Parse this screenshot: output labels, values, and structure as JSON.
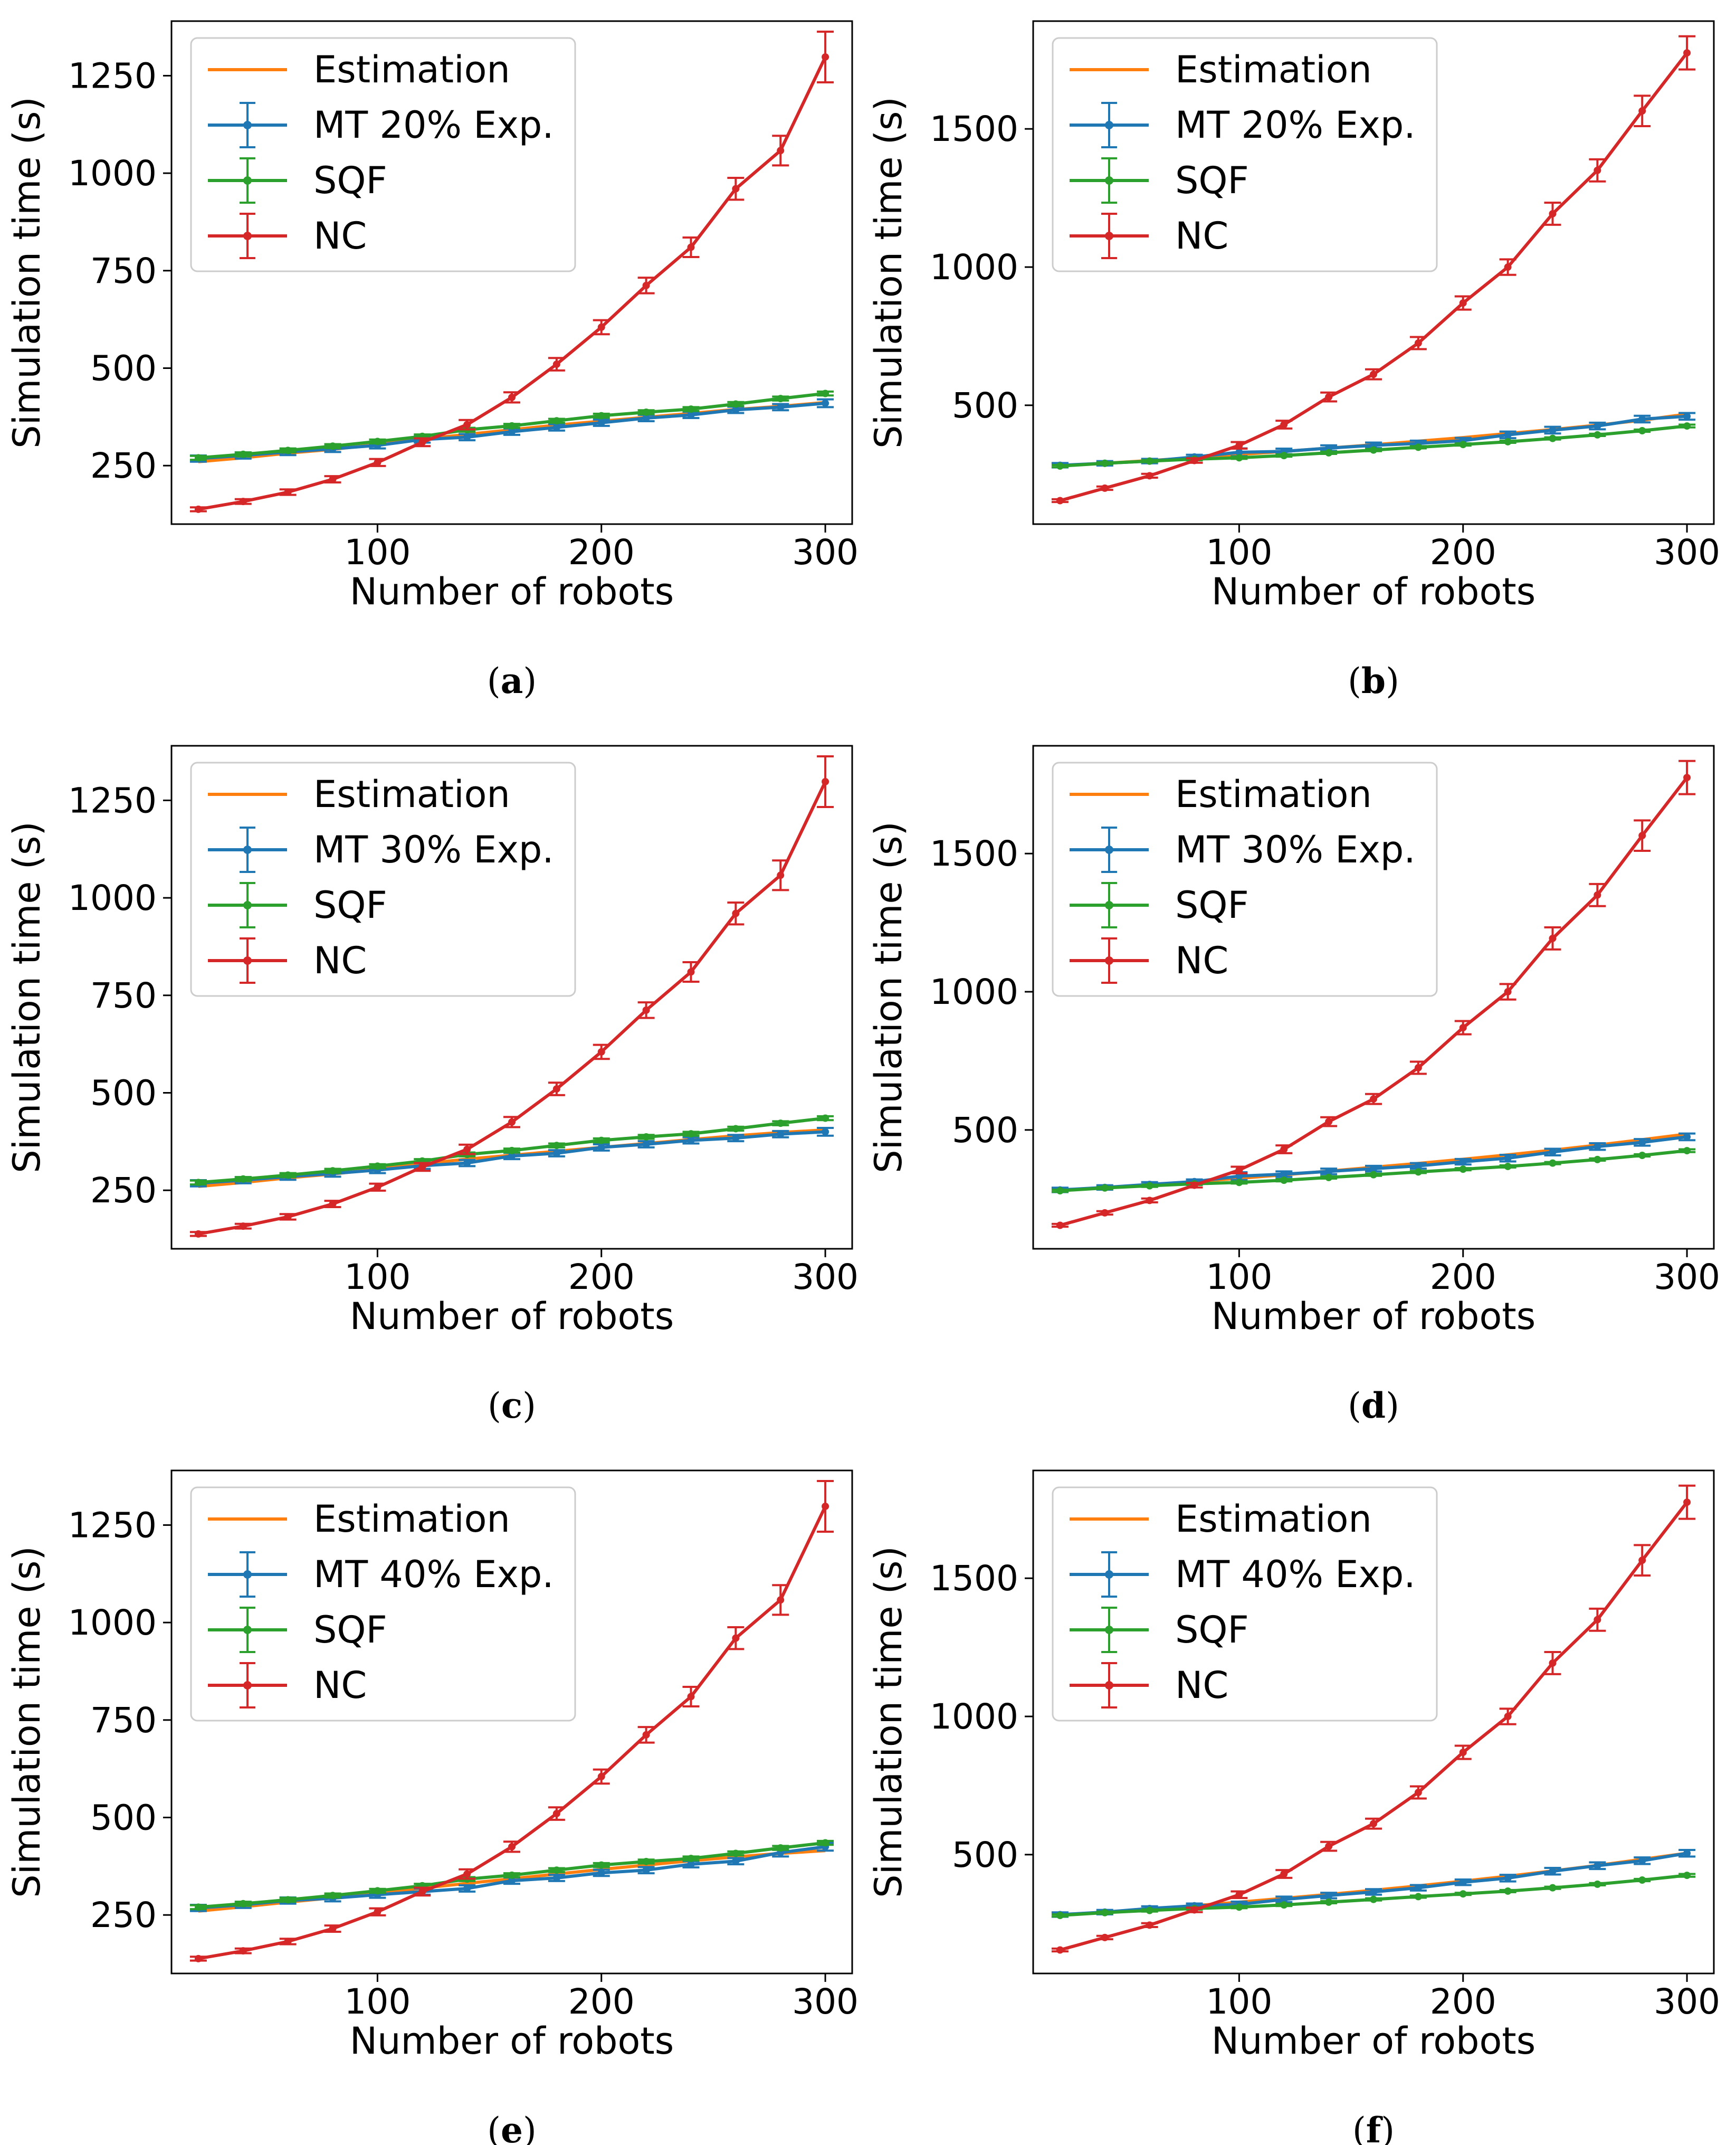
{
  "colors": {
    "estimation": "#ff7f0e",
    "mt": "#1f77b4",
    "sqf": "#2ca02c",
    "nc": "#d62728",
    "axis": "#000000",
    "legend_border": "#cccccc"
  },
  "chart_data": [
    {
      "type": "line",
      "label": "a",
      "xlabel": "Number of robots",
      "ylabel": "Simulation time (s)",
      "xlim": [
        8,
        312
      ],
      "ylim": [
        100,
        1390
      ],
      "xticks": [
        100,
        200,
        300
      ],
      "yticks": [
        250,
        500,
        750,
        1000,
        1250
      ],
      "legend_location": "upper-left",
      "x": [
        20,
        40,
        60,
        80,
        100,
        120,
        140,
        160,
        180,
        200,
        220,
        240,
        260,
        280,
        300
      ],
      "series": [
        {
          "name": "Estimation",
          "values": [
            260,
            270,
            282,
            292,
            304,
            318,
            330,
            342,
            354,
            364,
            374,
            384,
            394,
            402,
            412
          ]
        },
        {
          "name": "MT 20% Exp.",
          "values": [
            268,
            276,
            285,
            293,
            302,
            317,
            323,
            337,
            348,
            360,
            372,
            380,
            393,
            400,
            410
          ],
          "errors": [
            8,
            8,
            8,
            8,
            8,
            8,
            8,
            8,
            8,
            8,
            8,
            8,
            8,
            8,
            10
          ]
        },
        {
          "name": "SQF",
          "values": [
            270,
            279,
            289,
            300,
            312,
            325,
            342,
            352,
            365,
            378,
            387,
            395,
            408,
            422,
            435
          ],
          "errors": [
            5,
            5,
            5,
            5,
            5,
            5,
            5,
            5,
            5,
            5,
            5,
            5,
            5,
            5,
            5
          ]
        },
        {
          "name": "NC",
          "values": [
            138,
            158,
            182,
            215,
            258,
            310,
            355,
            425,
            510,
            605,
            712,
            810,
            960,
            1058,
            1298
          ],
          "errors": [
            5,
            6,
            7,
            8,
            9,
            10,
            12,
            13,
            16,
            18,
            20,
            25,
            28,
            38,
            65
          ]
        }
      ]
    },
    {
      "type": "line",
      "label": "b",
      "xlabel": "Number of robots",
      "ylabel": "Simulation time (s)",
      "xlim": [
        8,
        312
      ],
      "ylim": [
        70,
        1890
      ],
      "xticks": [
        100,
        200,
        300
      ],
      "yticks": [
        500,
        1000,
        1500
      ],
      "legend_location": "upper-left",
      "x": [
        20,
        40,
        60,
        80,
        100,
        120,
        140,
        160,
        180,
        200,
        220,
        240,
        260,
        280,
        300
      ],
      "series": [
        {
          "name": "Estimation",
          "values": [
            282,
            290,
            300,
            310,
            322,
            333,
            345,
            357,
            370,
            383,
            398,
            412,
            428,
            446,
            468
          ]
        },
        {
          "name": "MT 20% Exp.",
          "values": [
            283,
            290,
            298,
            313,
            330,
            333,
            345,
            355,
            362,
            372,
            393,
            410,
            425,
            450,
            460
          ],
          "errors": [
            8,
            8,
            8,
            8,
            14,
            10,
            10,
            10,
            10,
            10,
            12,
            12,
            12,
            12,
            12
          ]
        },
        {
          "name": "SQF",
          "values": [
            280,
            290,
            298,
            305,
            310,
            318,
            328,
            338,
            348,
            358,
            368,
            380,
            393,
            408,
            425
          ],
          "errors": [
            4,
            4,
            4,
            4,
            4,
            4,
            4,
            4,
            4,
            4,
            4,
            4,
            4,
            4,
            5
          ]
        },
        {
          "name": "NC",
          "values": [
            155,
            200,
            245,
            300,
            355,
            430,
            530,
            612,
            725,
            870,
            1000,
            1193,
            1350,
            1565,
            1775
          ],
          "errors": [
            5,
            6,
            7,
            8,
            12,
            14,
            16,
            18,
            22,
            24,
            28,
            40,
            40,
            55,
            60
          ]
        }
      ]
    },
    {
      "type": "line",
      "label": "c",
      "xlabel": "Number of robots",
      "ylabel": "Simulation time (s)",
      "xlim": [
        8,
        312
      ],
      "ylim": [
        100,
        1390
      ],
      "xticks": [
        100,
        200,
        300
      ],
      "yticks": [
        250,
        500,
        750,
        1000,
        1250
      ],
      "legend_location": "upper-left",
      "x": [
        20,
        40,
        60,
        80,
        100,
        120,
        140,
        160,
        180,
        200,
        220,
        240,
        260,
        280,
        300
      ],
      "series": [
        {
          "name": "Estimation",
          "values": [
            260,
            270,
            282,
            292,
            304,
            318,
            330,
            340,
            350,
            360,
            370,
            380,
            390,
            398,
            405
          ]
        },
        {
          "name": "MT 30% Exp.",
          "values": [
            268,
            276,
            285,
            293,
            302,
            313,
            320,
            338,
            345,
            360,
            368,
            378,
            384,
            394,
            400
          ],
          "errors": [
            8,
            8,
            8,
            8,
            8,
            8,
            8,
            8,
            8,
            8,
            8,
            8,
            8,
            8,
            10
          ]
        },
        {
          "name": "SQF",
          "values": [
            270,
            279,
            289,
            300,
            312,
            325,
            342,
            352,
            365,
            378,
            387,
            395,
            408,
            422,
            435
          ],
          "errors": [
            5,
            5,
            5,
            5,
            5,
            5,
            5,
            5,
            5,
            5,
            5,
            5,
            5,
            5,
            5
          ]
        },
        {
          "name": "NC",
          "values": [
            138,
            158,
            182,
            215,
            258,
            310,
            355,
            425,
            510,
            605,
            712,
            810,
            960,
            1058,
            1298
          ],
          "errors": [
            5,
            6,
            7,
            8,
            9,
            10,
            12,
            13,
            16,
            18,
            20,
            25,
            28,
            38,
            65
          ]
        }
      ]
    },
    {
      "type": "line",
      "label": "d",
      "xlabel": "Number of robots",
      "ylabel": "Simulation time (s)",
      "xlim": [
        8,
        312
      ],
      "ylim": [
        70,
        1890
      ],
      "xticks": [
        100,
        200,
        300
      ],
      "yticks": [
        500,
        1000,
        1500
      ],
      "legend_location": "upper-left",
      "x": [
        20,
        40,
        60,
        80,
        100,
        120,
        140,
        160,
        180,
        200,
        220,
        240,
        260,
        280,
        300
      ],
      "series": [
        {
          "name": "Estimation",
          "values": [
            282,
            291,
            302,
            313,
            325,
            338,
            351,
            365,
            379,
            394,
            410,
            427,
            445,
            465,
            485
          ]
        },
        {
          "name": "MT 30% Exp.",
          "values": [
            283,
            292,
            303,
            313,
            333,
            340,
            350,
            360,
            370,
            385,
            398,
            420,
            440,
            455,
            475
          ],
          "errors": [
            8,
            8,
            8,
            8,
            14,
            10,
            10,
            10,
            10,
            10,
            12,
            12,
            12,
            12,
            12
          ]
        },
        {
          "name": "SQF",
          "values": [
            280,
            290,
            298,
            305,
            310,
            318,
            328,
            338,
            348,
            358,
            368,
            380,
            393,
            408,
            425
          ],
          "errors": [
            4,
            4,
            4,
            4,
            4,
            4,
            4,
            4,
            4,
            4,
            4,
            4,
            4,
            4,
            5
          ]
        },
        {
          "name": "NC",
          "values": [
            155,
            200,
            245,
            300,
            355,
            430,
            530,
            612,
            725,
            870,
            1000,
            1193,
            1350,
            1565,
            1775
          ],
          "errors": [
            5,
            6,
            7,
            8,
            12,
            14,
            16,
            18,
            22,
            24,
            28,
            40,
            40,
            55,
            60
          ]
        }
      ]
    },
    {
      "type": "line",
      "label": "e",
      "xlabel": "Number of robots",
      "ylabel": "Simulation time (s)",
      "xlim": [
        8,
        312
      ],
      "ylim": [
        100,
        1390
      ],
      "xticks": [
        100,
        200,
        300
      ],
      "yticks": [
        250,
        500,
        750,
        1000,
        1250
      ],
      "legend_location": "upper-left",
      "x": [
        20,
        40,
        60,
        80,
        100,
        120,
        140,
        160,
        180,
        200,
        220,
        240,
        260,
        280,
        300
      ],
      "series": [
        {
          "name": "Estimation",
          "values": [
            260,
            271,
            283,
            294,
            306,
            319,
            331,
            343,
            355,
            367,
            378,
            389,
            399,
            408,
            415
          ]
        },
        {
          "name": "MT 40% Exp.",
          "values": [
            268,
            276,
            287,
            293,
            302,
            310,
            318,
            338,
            345,
            358,
            365,
            380,
            388,
            410,
            425
          ],
          "errors": [
            8,
            8,
            8,
            8,
            8,
            8,
            8,
            8,
            8,
            8,
            8,
            8,
            8,
            10,
            10
          ]
        },
        {
          "name": "SQF",
          "values": [
            270,
            279,
            289,
            300,
            312,
            325,
            342,
            352,
            365,
            378,
            387,
            395,
            408,
            422,
            435
          ],
          "errors": [
            5,
            5,
            5,
            5,
            5,
            5,
            5,
            5,
            5,
            5,
            5,
            5,
            5,
            5,
            5
          ]
        },
        {
          "name": "NC",
          "values": [
            138,
            158,
            182,
            215,
            258,
            310,
            355,
            425,
            510,
            605,
            712,
            810,
            960,
            1058,
            1298
          ],
          "errors": [
            5,
            6,
            7,
            8,
            9,
            10,
            12,
            13,
            16,
            18,
            20,
            25,
            28,
            38,
            65
          ]
        }
      ]
    },
    {
      "type": "line",
      "label": "f",
      "xlabel": "Number of robots",
      "ylabel": "Simulation time (s)",
      "xlim": [
        8,
        312
      ],
      "ylim": [
        70,
        1890
      ],
      "xticks": [
        100,
        200,
        300
      ],
      "yticks": [
        500,
        1000,
        1500
      ],
      "legend_location": "upper-left",
      "x": [
        20,
        40,
        60,
        80,
        100,
        120,
        140,
        160,
        180,
        200,
        220,
        240,
        260,
        280,
        300
      ],
      "series": [
        {
          "name": "Estimation",
          "values": [
            282,
            292,
            303,
            315,
            328,
            342,
            356,
            371,
            387,
            404,
            422,
            441,
            461,
            483,
            505
          ]
        },
        {
          "name": "MT 40% Exp.",
          "values": [
            283,
            292,
            305,
            315,
            320,
            338,
            352,
            365,
            380,
            400,
            415,
            440,
            460,
            478,
            505
          ],
          "errors": [
            8,
            8,
            8,
            8,
            10,
            10,
            10,
            10,
            10,
            10,
            12,
            12,
            12,
            12,
            12
          ]
        },
        {
          "name": "SQF",
          "values": [
            280,
            290,
            298,
            305,
            310,
            318,
            328,
            338,
            348,
            358,
            368,
            380,
            393,
            408,
            425
          ],
          "errors": [
            4,
            4,
            4,
            4,
            4,
            4,
            4,
            4,
            4,
            4,
            4,
            4,
            4,
            4,
            5
          ]
        },
        {
          "name": "NC",
          "values": [
            155,
            200,
            245,
            300,
            355,
            430,
            530,
            612,
            725,
            870,
            1000,
            1193,
            1350,
            1565,
            1775
          ],
          "errors": [
            5,
            6,
            7,
            8,
            12,
            14,
            16,
            18,
            22,
            24,
            28,
            40,
            40,
            55,
            60
          ]
        }
      ]
    }
  ]
}
